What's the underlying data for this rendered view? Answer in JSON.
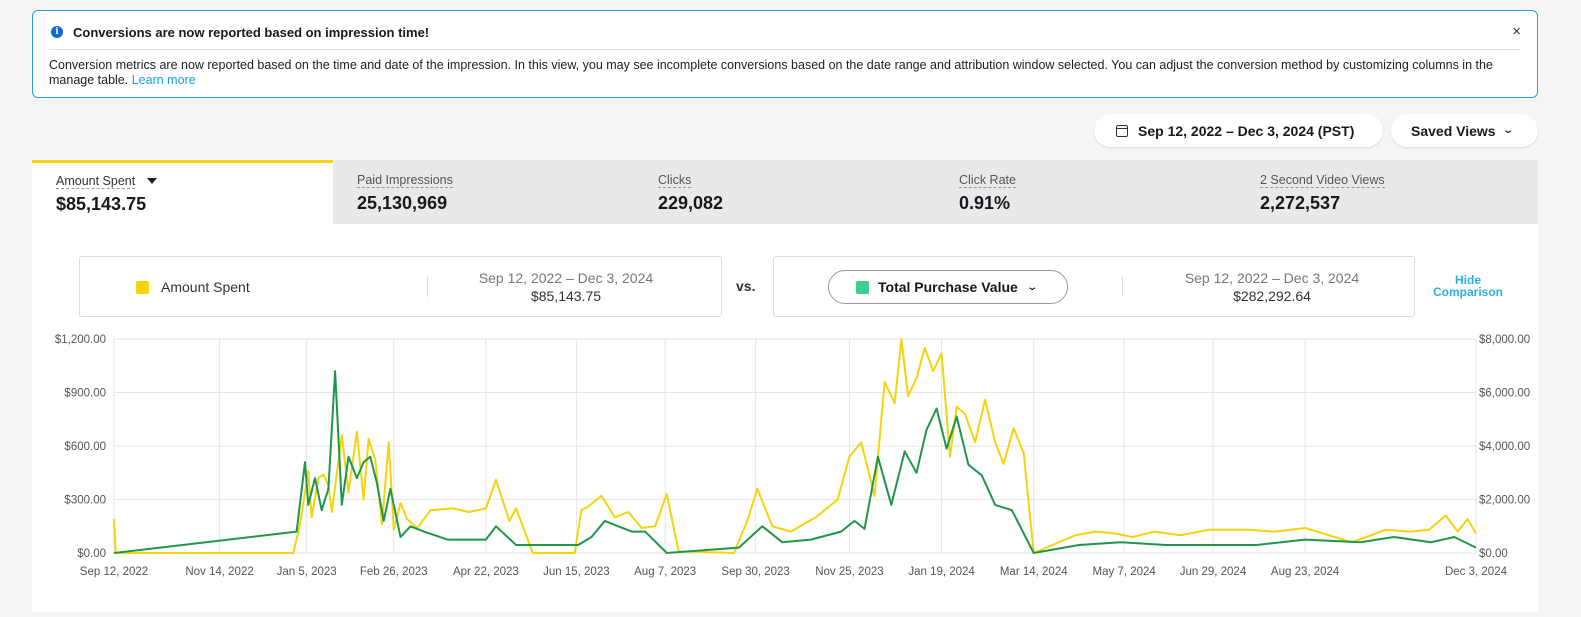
{
  "banner": {
    "title": "Conversions are now reported based on impression time!",
    "body": "Conversion metrics are now reported based on the time and date of the impression. In this view, you may see incomplete conversions based on the date range and attribution window selected. You can adjust the conversion method by customizing columns in the manage table.",
    "link": "Learn more",
    "close": "×",
    "info_glyph": "i"
  },
  "date_range": "Sep 12, 2022 – Dec 3, 2024 (PST)",
  "saved_views": "Saved Views",
  "tabs": [
    {
      "label": "Amount Spent",
      "value": "$85,143.75",
      "active": true
    },
    {
      "label": "Paid Impressions",
      "value": "25,130,969"
    },
    {
      "label": "Clicks",
      "value": "229,082"
    },
    {
      "label": "Click Rate",
      "value": "0.91%"
    },
    {
      "label": "2 Second Video Views",
      "value": "2,272,537"
    }
  ],
  "comparison": {
    "left": {
      "metric": "Amount Spent",
      "range": "Sep 12, 2022 – Dec 3, 2024",
      "value": "$85,143.75",
      "color": "#f6d30d"
    },
    "vs": "vs.",
    "right": {
      "metric": "Total Purchase Value",
      "range": "Sep 12, 2022 – Dec 3, 2024",
      "value": "$282,292.64",
      "color": "#3ccf8e"
    },
    "hide": "Hide Comparison"
  },
  "chart_data": {
    "type": "line",
    "x_ticks": [
      "Sep 12, 2022",
      "Nov 14, 2022",
      "Jan 5, 2023",
      "Feb 26, 2023",
      "Apr 22, 2023",
      "Jun 15, 2023",
      "Aug 7, 2023",
      "Sep 30, 2023",
      "Nov 25, 2023",
      "Jan 19, 2024",
      "Mar 14, 2024",
      "May 7, 2024",
      "Jun 29, 2024",
      "Aug 23, 2024",
      "Dec 3, 2024"
    ],
    "y_left_ticks": [
      "$0.00",
      "$300.00",
      "$600.00",
      "$900.00",
      "$1,200.00"
    ],
    "y_right_ticks": [
      "$0.00",
      "$2,000.00",
      "$4,000.00",
      "$6,000.00",
      "$8,000.00"
    ],
    "y_left_range": [
      0,
      1200
    ],
    "y_right_range": [
      0,
      8000
    ],
    "grid": true,
    "series": [
      {
        "name": "Amount Spent",
        "axis": "left",
        "color": "#f6d30d",
        "x": [
          "2022-09-12",
          "2022-09-13",
          "2022-12-28",
          "2023-01-01",
          "2023-01-06",
          "2023-01-08",
          "2023-01-12",
          "2023-01-15",
          "2023-01-18",
          "2023-01-20",
          "2023-01-26",
          "2023-01-30",
          "2023-02-04",
          "2023-02-08",
          "2023-02-11",
          "2023-02-15",
          "2023-02-19",
          "2023-02-23",
          "2023-02-26",
          "2023-03-02",
          "2023-03-06",
          "2023-03-12",
          "2023-03-20",
          "2023-04-02",
          "2023-04-12",
          "2023-04-22",
          "2023-04-28",
          "2023-05-06",
          "2023-05-10",
          "2023-05-20",
          "2023-06-14",
          "2023-06-18",
          "2023-06-22",
          "2023-06-30",
          "2023-07-08",
          "2023-07-16",
          "2023-07-24",
          "2023-08-01",
          "2023-08-08",
          "2023-08-15",
          "2023-09-17",
          "2023-09-25",
          "2023-10-01",
          "2023-10-10",
          "2023-10-21",
          "2023-11-05",
          "2023-11-18",
          "2023-11-25",
          "2023-12-02",
          "2023-12-10",
          "2023-12-16",
          "2023-12-22",
          "2023-12-26",
          "2023-12-30",
          "2024-01-04",
          "2024-01-09",
          "2024-01-14",
          "2024-01-19",
          "2024-01-24",
          "2024-01-28",
          "2024-02-02",
          "2024-02-08",
          "2024-02-14",
          "2024-02-20",
          "2024-02-25",
          "2024-03-02",
          "2024-03-08",
          "2024-03-14",
          "2024-04-08",
          "2024-04-20",
          "2024-05-01",
          "2024-05-12",
          "2024-05-25",
          "2024-06-10",
          "2024-06-26",
          "2024-07-20",
          "2024-08-05",
          "2024-08-23",
          "2024-09-20",
          "2024-10-10",
          "2024-10-25",
          "2024-11-05",
          "2024-11-15",
          "2024-11-22",
          "2024-11-28",
          "2024-12-03"
        ],
        "values": [
          190,
          0,
          0,
          160,
          460,
          200,
          420,
          440,
          380,
          230,
          660,
          340,
          680,
          300,
          640,
          520,
          160,
          620,
          130,
          280,
          190,
          140,
          240,
          250,
          230,
          250,
          410,
          180,
          250,
          0,
          0,
          240,
          260,
          320,
          200,
          230,
          140,
          150,
          330,
          10,
          0,
          180,
          360,
          150,
          120,
          200,
          300,
          540,
          620,
          320,
          960,
          840,
          1200,
          880,
          980,
          1150,
          1020,
          1120,
          540,
          820,
          780,
          620,
          860,
          620,
          500,
          700,
          560,
          0,
          100,
          120,
          110,
          90,
          120,
          100,
          130,
          130,
          120,
          140,
          60,
          130,
          120,
          130,
          210,
          120,
          190,
          110
        ]
      },
      {
        "name": "Total Purchase Value",
        "axis": "right",
        "color": "#1f9748",
        "x": [
          "2022-09-12",
          "2022-12-30",
          "2023-01-04",
          "2023-01-06",
          "2023-01-10",
          "2023-01-14",
          "2023-01-18",
          "2023-01-22",
          "2023-01-26",
          "2023-01-30",
          "2023-02-04",
          "2023-02-08",
          "2023-02-12",
          "2023-02-16",
          "2023-02-20",
          "2023-02-24",
          "2023-03-02",
          "2023-03-08",
          "2023-03-16",
          "2023-03-30",
          "2023-04-12",
          "2023-04-22",
          "2023-04-28",
          "2023-05-10",
          "2023-06-16",
          "2023-06-24",
          "2023-07-02",
          "2023-07-10",
          "2023-07-18",
          "2023-07-26",
          "2023-08-08",
          "2023-09-20",
          "2023-10-04",
          "2023-10-16",
          "2023-11-02",
          "2023-11-20",
          "2023-11-28",
          "2023-12-04",
          "2023-12-12",
          "2023-12-20",
          "2023-12-28",
          "2024-01-04",
          "2024-01-10",
          "2024-01-16",
          "2024-01-22",
          "2024-01-28",
          "2024-02-04",
          "2024-02-12",
          "2024-02-20",
          "2024-03-01",
          "2024-03-14",
          "2024-04-10",
          "2024-05-05",
          "2024-06-01",
          "2024-06-30",
          "2024-07-25",
          "2024-08-23",
          "2024-09-25",
          "2024-10-15",
          "2024-11-06",
          "2024-11-20",
          "2024-12-03"
        ],
        "values": [
          0,
          800,
          3400,
          1800,
          2800,
          1600,
          2400,
          6800,
          1800,
          3600,
          2800,
          3400,
          3600,
          2600,
          1200,
          2400,
          600,
          1000,
          800,
          500,
          500,
          500,
          1000,
          300,
          300,
          600,
          1200,
          1000,
          800,
          800,
          0,
          200,
          1000,
          400,
          500,
          800,
          1200,
          900,
          3600,
          1800,
          3800,
          3000,
          4600,
          5400,
          3900,
          5100,
          3300,
          2900,
          1800,
          1600,
          0,
          300,
          400,
          300,
          300,
          300,
          500,
          400,
          600,
          400,
          600,
          200
        ]
      }
    ]
  }
}
